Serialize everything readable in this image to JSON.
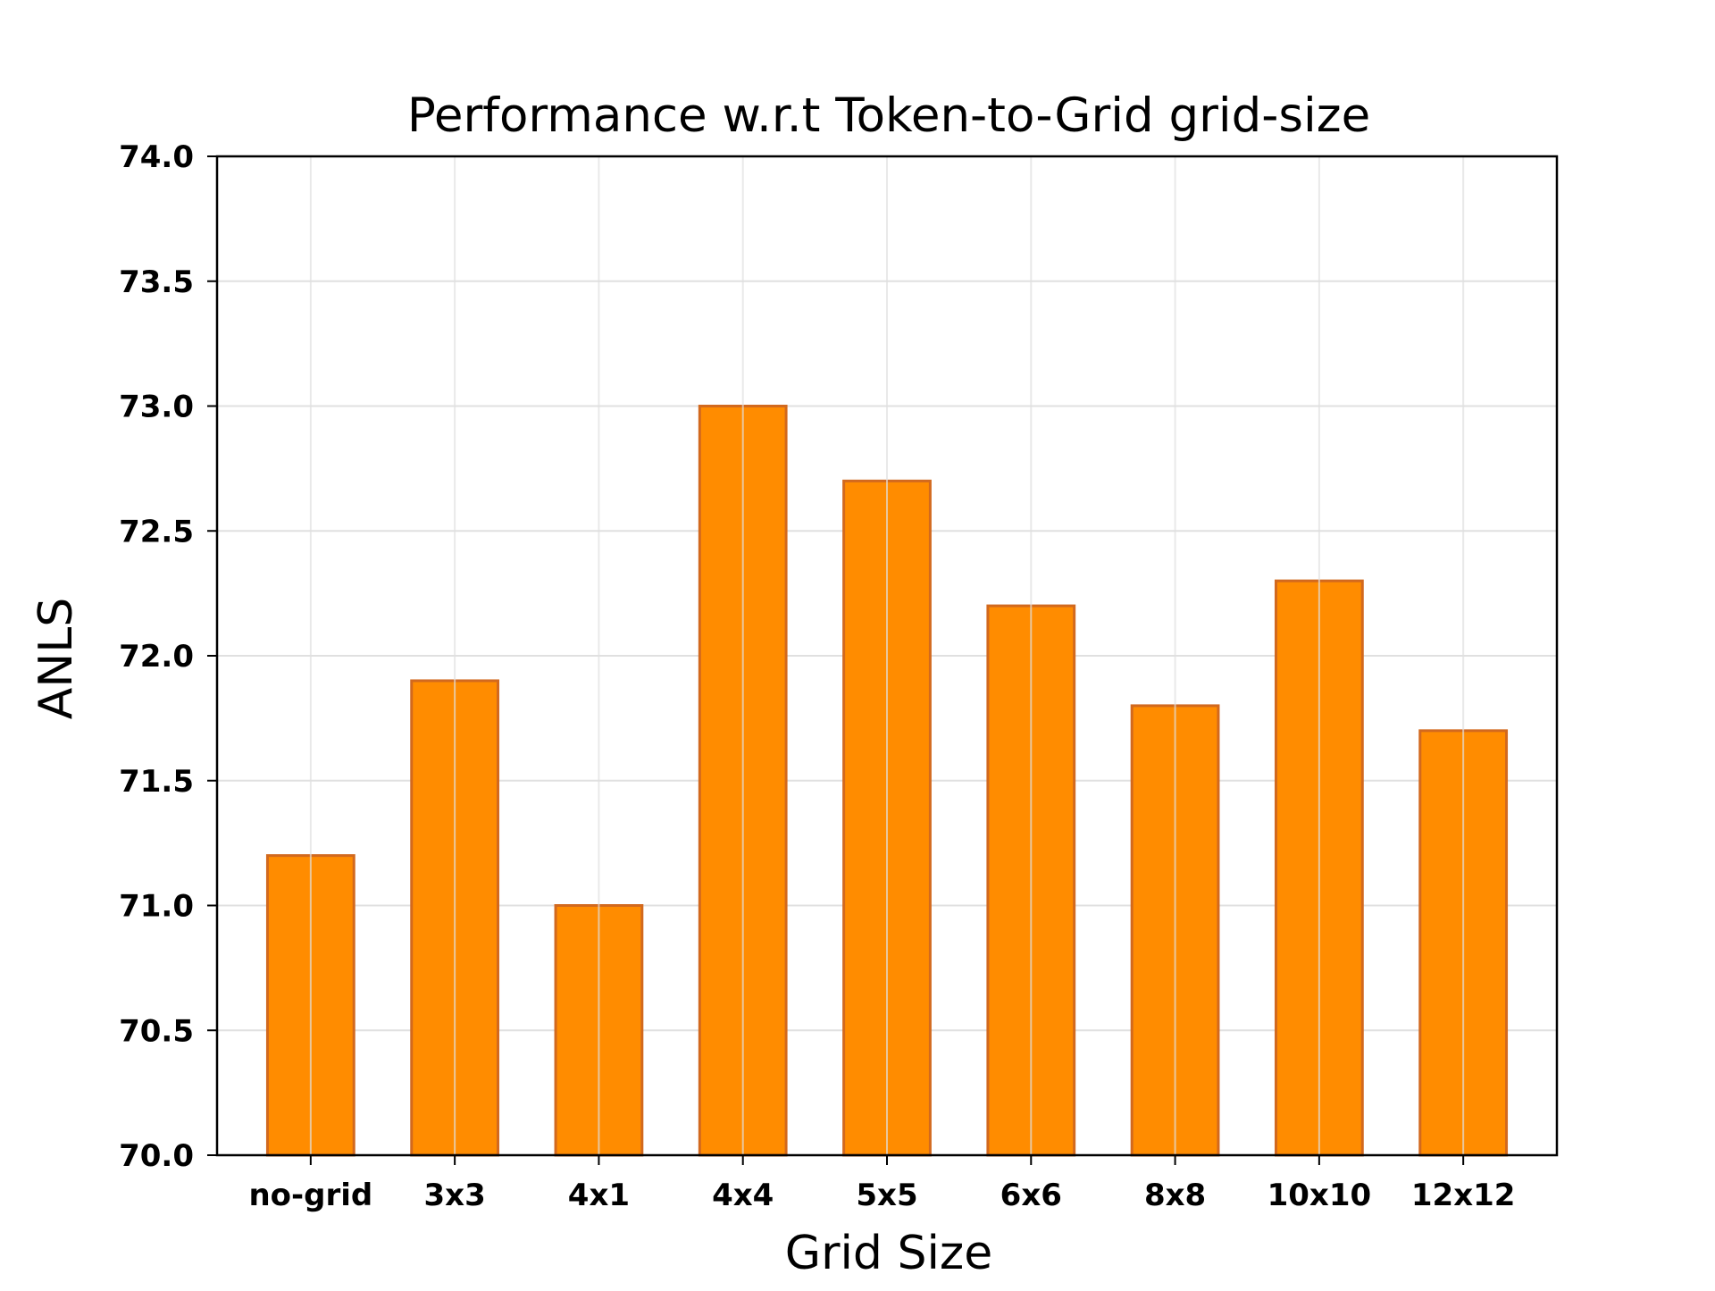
{
  "chart_data": {
    "type": "bar",
    "title": "Performance w.r.t Token-to-Grid grid-size",
    "xlabel": "Grid Size",
    "ylabel": "ANLS",
    "categories": [
      "no-grid",
      "3x3",
      "4x1",
      "4x4",
      "5x5",
      "6x6",
      "8x8",
      "10x10",
      "12x12"
    ],
    "values": [
      71.2,
      71.9,
      71.0,
      73.0,
      72.7,
      72.2,
      71.8,
      72.3,
      71.7
    ],
    "ylim": [
      70.0,
      74.0
    ],
    "yticks": [
      "70.0",
      "70.5",
      "71.0",
      "71.5",
      "72.0",
      "72.5",
      "73.0",
      "73.5",
      "74.0"
    ],
    "grid": true,
    "legend": "none",
    "colors": {
      "bar_fill": "#ff8c00",
      "bar_edge": "#d2691e",
      "grid": "#e0e0e0",
      "axis": "#000000"
    }
  }
}
